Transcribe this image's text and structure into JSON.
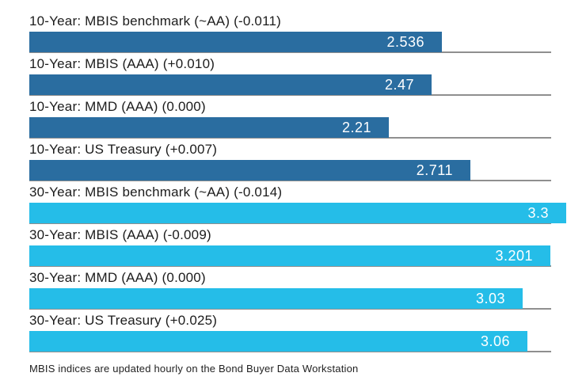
{
  "chart_data": {
    "type": "bar",
    "orientation": "horizontal",
    "title": "",
    "xlabel": "",
    "ylabel": "",
    "xlim": [
      0,
      3.38
    ],
    "grid": "per-row baseline only",
    "legend": "none",
    "value_labels_position": "inside-right",
    "series_colors": {
      "ten_year": "#2a6da0",
      "thirty_year": "#25bde8"
    },
    "gridline_color": "#8f8f8f",
    "rows": [
      {
        "label": "10-Year: MBIS benchmark (~AA) (-0.011)",
        "value": 2.536,
        "value_label": "2.536",
        "series": "ten_year"
      },
      {
        "label": "10-Year: MBIS (AAA) (+0.010)",
        "value": 2.47,
        "value_label": "2.47",
        "series": "ten_year"
      },
      {
        "label": "10-Year: MMD (AAA) (0.000)",
        "value": 2.21,
        "value_label": "2.21",
        "series": "ten_year"
      },
      {
        "label": "10-Year: US Treasury (+0.007)",
        "value": 2.711,
        "value_label": "2.711",
        "series": "ten_year"
      },
      {
        "label": "30-Year: MBIS benchmark (~AA) (-0.014)",
        "value": 3.3,
        "value_label": "3.3",
        "series": "thirty_year"
      },
      {
        "label": "30-Year: MBIS (AAA) (-0.009)",
        "value": 3.201,
        "value_label": "3.201",
        "series": "thirty_year"
      },
      {
        "label": "30-Year: MMD (AAA) (0.000)",
        "value": 3.03,
        "value_label": "3.03",
        "series": "thirty_year"
      },
      {
        "label": "30-Year: US Treasury (+0.025)",
        "value": 3.06,
        "value_label": "3.06",
        "series": "thirty_year"
      }
    ]
  },
  "footnote": "MBIS indices are updated hourly on the Bond Buyer Data Workstation"
}
